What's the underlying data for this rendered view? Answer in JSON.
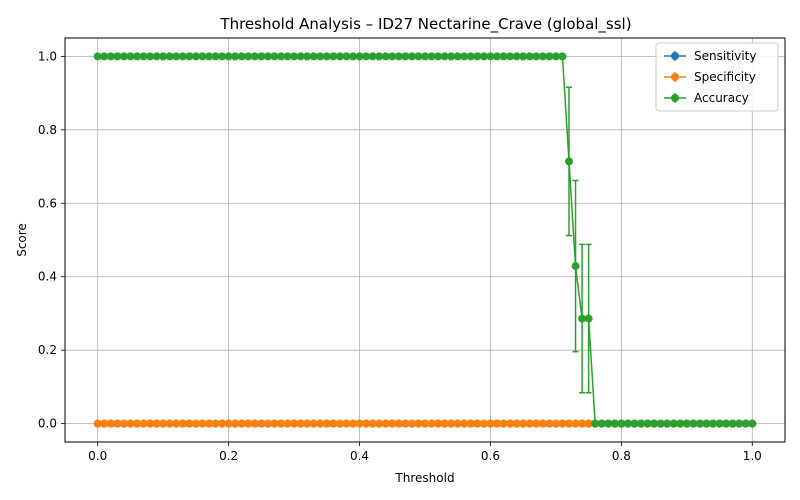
{
  "chart_data": {
    "type": "line",
    "title": "Threshold Analysis – ID27 Nectarine_Crave (global_ssl)",
    "xlabel": "Threshold",
    "ylabel": "Score",
    "xlim": [
      -0.05,
      1.05
    ],
    "ylim": [
      -0.05,
      1.05
    ],
    "xticks": [
      "0.0",
      "0.2",
      "0.4",
      "0.6",
      "0.8",
      "1.0"
    ],
    "yticks": [
      "0.0",
      "0.2",
      "0.4",
      "0.6",
      "0.8",
      "1.0"
    ],
    "grid": true,
    "legend_position": "top-right",
    "x": {
      "start": 0,
      "end": 1,
      "count": 101
    },
    "series": [
      {
        "name": "Sensitivity",
        "color": "#1f77b4",
        "values": {
          "default": 0,
          "overrides": {}
        },
        "errors": {}
      },
      {
        "name": "Specificity",
        "color": "#ff7f0e",
        "values": {
          "default": 0,
          "overrides": {}
        },
        "errors": {}
      },
      {
        "name": "Accuracy",
        "color": "#2ca02c",
        "values": {
          "default": 0,
          "upto": {
            "index": 71,
            "value": 1
          },
          "overrides": {
            "72": 0.714,
            "73": 0.429,
            "74": 0.286,
            "75": 0.286
          }
        },
        "errors": {
          "72": 0.202,
          "73": 0.233,
          "74": 0.202,
          "75": 0.202
        }
      }
    ]
  }
}
